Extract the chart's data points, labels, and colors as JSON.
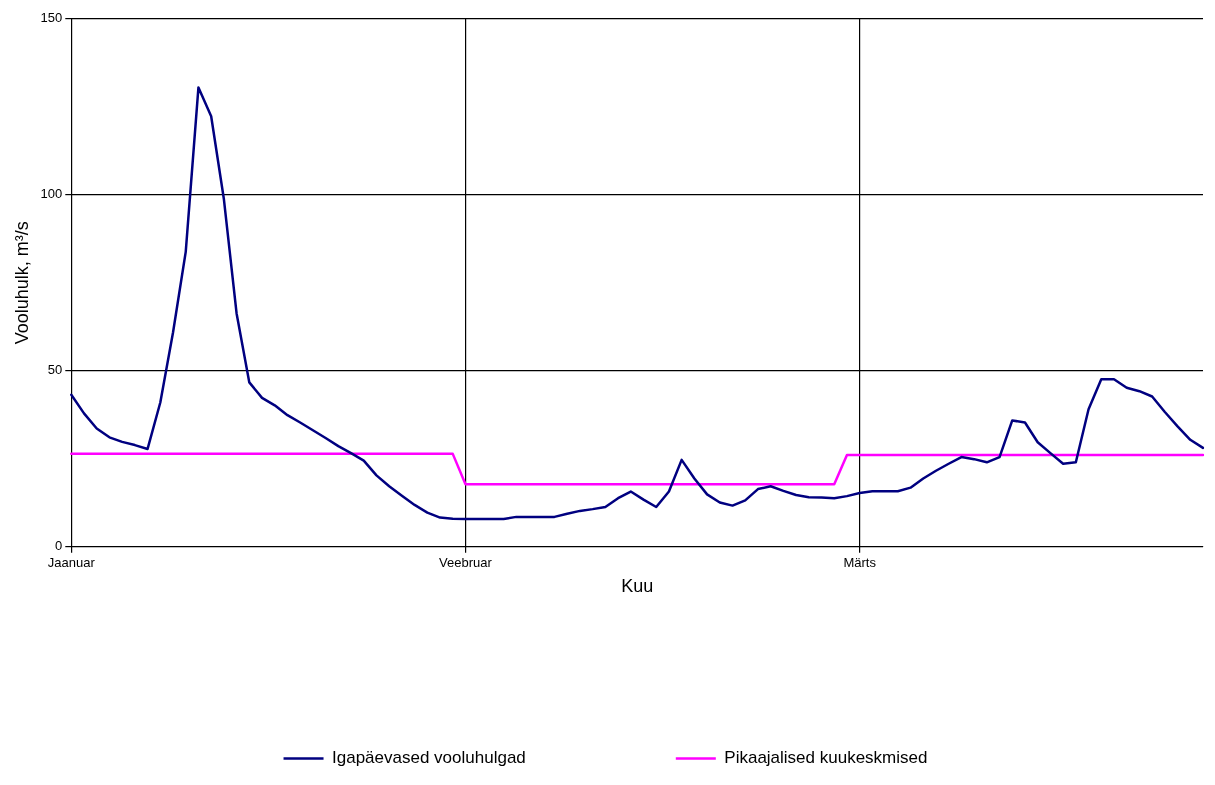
{
  "chart_data": {
    "type": "line",
    "xlabel": "Kuu",
    "ylabel": "Vooluhulk, m³/s",
    "categories": [
      "Jaanuar",
      null,
      null,
      null,
      null,
      null,
      null,
      null,
      null,
      null,
      null,
      null,
      null,
      null,
      null,
      null,
      null,
      null,
      null,
      null,
      null,
      null,
      null,
      null,
      null,
      null,
      null,
      null,
      null,
      null,
      null,
      "Veebruar",
      null,
      null,
      null,
      null,
      null,
      null,
      null,
      null,
      null,
      null,
      null,
      null,
      null,
      null,
      null,
      null,
      null,
      null,
      null,
      null,
      null,
      null,
      null,
      null,
      null,
      null,
      null,
      null,
      null,
      null,
      "Märts",
      null,
      null,
      null,
      null,
      null,
      null,
      null,
      null,
      null,
      null,
      null,
      null,
      null,
      null,
      null,
      null,
      null,
      null,
      null,
      null,
      null,
      null,
      null,
      null,
      null,
      null,
      null
    ],
    "series": [
      {
        "name": "Igapäevased vooluhulgad",
        "color": "#000080",
        "values": [
          43.2,
          37.9,
          33.6,
          31.1,
          29.8,
          28.9,
          27.8,
          41,
          60.9,
          83.8,
          130.5,
          122.3,
          98.8,
          66.3,
          46.7,
          42.3,
          40.2,
          37.4,
          35.3,
          33.1,
          30.9,
          28.6,
          26.6,
          24.5,
          20.3,
          17.2,
          14.5,
          11.9,
          9.7,
          8.3,
          8,
          7.9,
          7.9,
          7.9,
          7.9,
          8.5,
          8.5,
          8.5,
          8.5,
          9.4,
          10.2,
          10.7,
          11.3,
          13.8,
          15.7,
          13.4,
          11.3,
          15.7,
          24.7,
          19.4,
          14.9,
          12.6,
          11.7,
          13.2,
          16.4,
          17.2,
          15.9,
          14.7,
          14.1,
          14,
          13.8,
          14.4,
          15.3,
          15.8,
          15.8,
          15.8,
          16.8,
          19.4,
          21.6,
          23.6,
          25.5,
          24.9,
          24,
          25.5,
          35.9,
          35.3,
          29.7,
          26.6,
          23.6,
          24,
          39.1,
          47.6,
          47.6,
          45.2,
          44.2,
          42.7,
          38.3,
          34.2,
          30.4,
          28.1
        ]
      },
      {
        "name": "Pikaajalised kuukeskmised",
        "color": "#ff00ff",
        "values": [
          26.4,
          26.4,
          26.4,
          26.4,
          26.4,
          26.4,
          26.4,
          26.4,
          26.4,
          26.4,
          26.4,
          26.4,
          26.4,
          26.4,
          26.4,
          26.4,
          26.4,
          26.4,
          26.4,
          26.4,
          26.4,
          26.4,
          26.4,
          26.4,
          26.4,
          26.4,
          26.4,
          26.4,
          26.4,
          26.4,
          26.4,
          17.8,
          17.8,
          17.8,
          17.8,
          17.8,
          17.8,
          17.8,
          17.8,
          17.8,
          17.8,
          17.8,
          17.8,
          17.8,
          17.8,
          17.8,
          17.8,
          17.8,
          17.8,
          17.8,
          17.8,
          17.8,
          17.8,
          17.8,
          17.8,
          17.8,
          17.8,
          17.8,
          17.8,
          17.8,
          17.8,
          26.1,
          26.1,
          26.1,
          26.1,
          26.1,
          26.1,
          26.1,
          26.1,
          26.1,
          26.1,
          26.1,
          26.1,
          26.1,
          26.1,
          26.1,
          26.1,
          26.1,
          26.1,
          26.1,
          26.1,
          26.1,
          26.1,
          26.1,
          26.1,
          26.1,
          26.1,
          26.1,
          26.1,
          26.1
        ]
      }
    ],
    "ylim": [
      0,
      150
    ],
    "yticks": [
      0,
      50,
      100,
      150
    ],
    "grid": true,
    "legend": "bottom",
    "marker": "none",
    "line_style": "solid"
  }
}
